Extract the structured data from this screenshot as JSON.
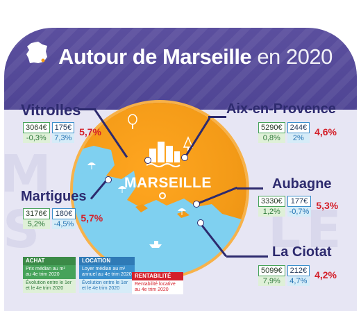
{
  "title": {
    "main": "Autour de Marseille",
    "sub": "en 2020"
  },
  "center": {
    "label": "MARSEILLE"
  },
  "cities": [
    {
      "name": "Vitrolles",
      "prix": "3064€",
      "loyer": "175€",
      "evol_prix": "-0,3%",
      "evol_loyer": "7,3%",
      "rentabilite": "5,7%"
    },
    {
      "name": "Aix-en-Provence",
      "prix": "5290€",
      "loyer": "244€",
      "evol_prix": "0,8%",
      "evol_loyer": "2%",
      "rentabilite": "4,6%"
    },
    {
      "name": "Martigues",
      "prix": "3176€",
      "loyer": "180€",
      "evol_prix": "5,2%",
      "evol_loyer": "-4,5%",
      "rentabilite": "5,7%"
    },
    {
      "name": "Aubagne",
      "prix": "3330€",
      "loyer": "177€",
      "evol_prix": "1,2%",
      "evol_loyer": "-0,7%",
      "rentabilite": "5,3%"
    },
    {
      "name": "La Ciotat",
      "prix": "5099€",
      "loyer": "212€",
      "evol_prix": "7,9%",
      "evol_loyer": "4,7%",
      "rentabilite": "4,2%"
    }
  ],
  "legend": {
    "achat": {
      "head": "ACHAT",
      "line1": "Prix médian au m²",
      "line2": "au 4e trim 2020",
      "line3": "Évolution entre le 1er",
      "line4": "et le 4e trim 2020"
    },
    "location": {
      "head": "LOCATION",
      "line1": "Loyer médian au m²",
      "line2": "annuel au 4e trim 2020",
      "line3": "Évolution entre le 1er",
      "line4": "et le 4e trim 2020"
    },
    "rentabilite": {
      "head": "RENTABILITÉ",
      "line1": "Rentabilité locative",
      "line2": "au 4e trim 2020"
    }
  },
  "colors": {
    "purple": "#4f4594",
    "navy": "#2d2a6e",
    "orange": "#f39a17",
    "sea": "#7fd0f0",
    "red": "#d4202a",
    "green": "#47a35a",
    "blue": "#3a8fcc"
  },
  "icons": [
    "france-map-icon",
    "city-buildings-icon",
    "tree-icon",
    "boat-icon",
    "umbrella-icon"
  ]
}
